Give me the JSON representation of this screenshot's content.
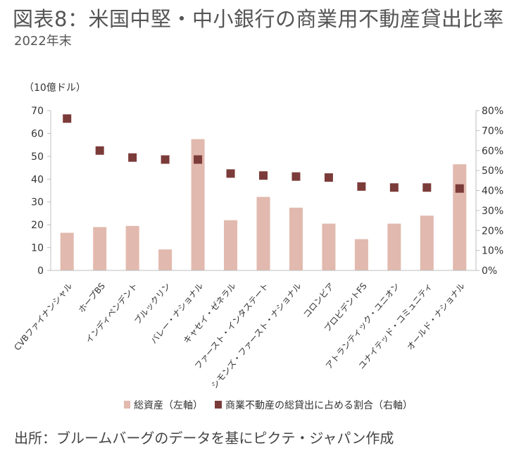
{
  "title": "図表8：米国中堅・中小銀行の商業用不動産貸出比率",
  "subtitle": "2022年末",
  "source": "出所：ブルームバーグのデータを基にピクテ・ジャパン作成",
  "colors": {
    "bar": "#e2b9ae",
    "marker": "#7b3b39",
    "axis": "#bfbfbf"
  },
  "chart_data": {
    "type": "bar",
    "categories": [
      "CVBファイナンシャル",
      "ホープBS",
      "インディペンデント",
      "ブルックリン",
      "バレー・ナショナル",
      "キャセイ・ゼネラル",
      "ファースト・インタステート",
      "シモンズ・ファースト・ナショナル",
      "コロンビア",
      "プロビデントFS",
      "アトランティック・ユニオン",
      "ユナイテッド・コミュニティ",
      "オールド・ナショナル"
    ],
    "series": [
      {
        "name": "総資産（左軸）",
        "type": "bar",
        "axis": "left",
        "values": [
          16.5,
          19,
          19.5,
          9.2,
          57.5,
          22,
          32.2,
          27.5,
          20.5,
          13.7,
          20.5,
          24,
          46.5
        ]
      },
      {
        "name": "商業不動産の総貸出に占める割合（右軸）",
        "type": "scatter",
        "axis": "right",
        "values": [
          0.76,
          0.6,
          0.565,
          0.555,
          0.555,
          0.485,
          0.475,
          0.47,
          0.465,
          0.42,
          0.415,
          0.415,
          0.41
        ]
      }
    ],
    "ylabel": "（10億ドル）",
    "ylim": [
      0,
      70
    ],
    "y_ticks": [
      "0",
      "10",
      "20",
      "30",
      "40",
      "50",
      "60",
      "70"
    ],
    "y2lim": [
      0,
      0.8
    ],
    "y2_ticks": [
      "0%",
      "10%",
      "20%",
      "30%",
      "40%",
      "50%",
      "60%",
      "70%",
      "80%"
    ],
    "grid": false,
    "legend_position": "bottom"
  }
}
